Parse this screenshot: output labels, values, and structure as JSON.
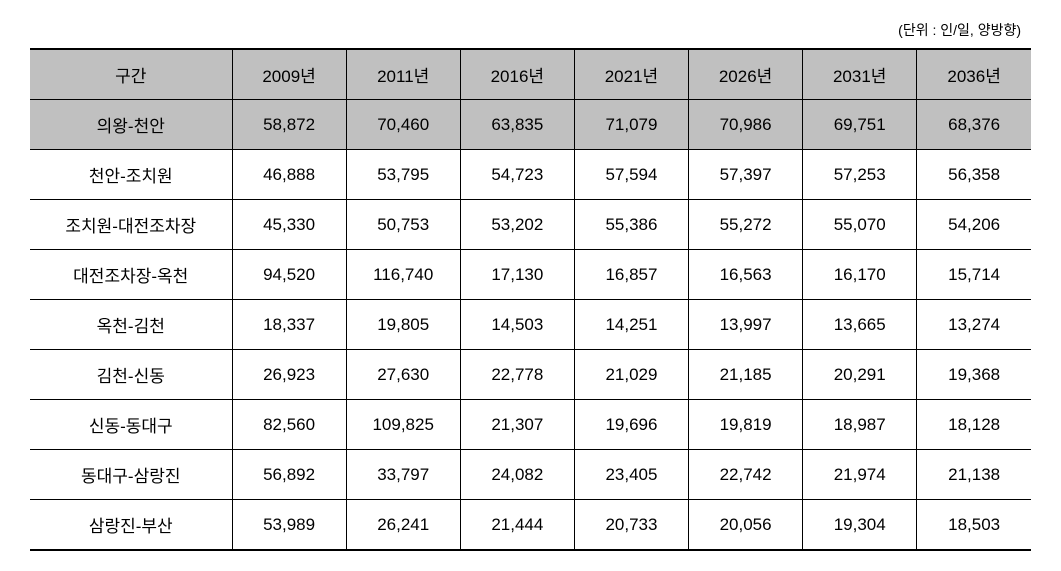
{
  "unit_label": "(단위 : 인/일, 양방향)",
  "table": {
    "header_first": "구간",
    "year_columns": [
      "2009년",
      "2011년",
      "2016년",
      "2021년",
      "2026년",
      "2031년",
      "2036년"
    ],
    "rows": [
      {
        "label": "의왕-천안",
        "values": [
          "58,872",
          "70,460",
          "63,835",
          "71,079",
          "70,986",
          "69,751",
          "68,376"
        ],
        "highlight": true
      },
      {
        "label": "천안-조치원",
        "values": [
          "46,888",
          "53,795",
          "54,723",
          "57,594",
          "57,397",
          "57,253",
          "56,358"
        ],
        "highlight": false
      },
      {
        "label": "조치원-대전조차장",
        "values": [
          "45,330",
          "50,753",
          "53,202",
          "55,386",
          "55,272",
          "55,070",
          "54,206"
        ],
        "highlight": false
      },
      {
        "label": "대전조차장-옥천",
        "values": [
          "94,520",
          "116,740",
          "17,130",
          "16,857",
          "16,563",
          "16,170",
          "15,714"
        ],
        "highlight": false
      },
      {
        "label": "옥천-김천",
        "values": [
          "18,337",
          "19,805",
          "14,503",
          "14,251",
          "13,997",
          "13,665",
          "13,274"
        ],
        "highlight": false
      },
      {
        "label": "김천-신동",
        "values": [
          "26,923",
          "27,630",
          "22,778",
          "21,029",
          "21,185",
          "20,291",
          "19,368"
        ],
        "highlight": false
      },
      {
        "label": "신동-동대구",
        "values": [
          "82,560",
          "109,825",
          "21,307",
          "19,696",
          "19,819",
          "18,987",
          "18,128"
        ],
        "highlight": false
      },
      {
        "label": "동대구-삼랑진",
        "values": [
          "56,892",
          "33,797",
          "24,082",
          "23,405",
          "22,742",
          "21,974",
          "21,138"
        ],
        "highlight": false
      },
      {
        "label": "삼랑진-부산",
        "values": [
          "53,989",
          "26,241",
          "21,444",
          "20,733",
          "20,056",
          "19,304",
          "18,503"
        ],
        "highlight": false
      }
    ]
  }
}
